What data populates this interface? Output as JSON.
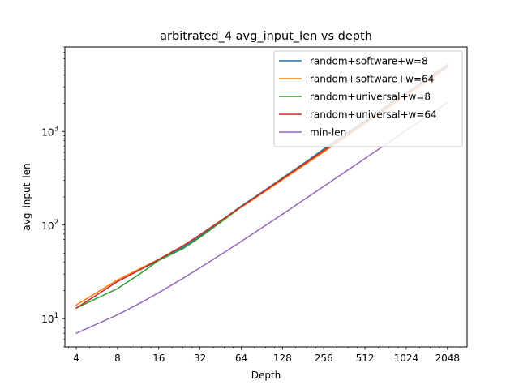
{
  "chart_data": {
    "type": "line",
    "title": "arbitrated_4 avg_input_len vs depth",
    "xlabel": "Depth",
    "ylabel": "avg_input_len",
    "xscale": "log2",
    "yscale": "log10",
    "xlim": [
      3.3,
      2850
    ],
    "ylim": [
      5,
      8000
    ],
    "xticks": [
      4,
      8,
      16,
      32,
      64,
      128,
      256,
      512,
      1024,
      2048
    ],
    "xtick_labels": [
      "4",
      "8",
      "16",
      "32",
      "64",
      "128",
      "256",
      "512",
      "1024",
      "2048"
    ],
    "yticks": [
      10,
      100,
      1000
    ],
    "ytick_labels": [
      "10",
      "10",
      "10"
    ],
    "ytick_exponents": [
      "1",
      "2",
      "3"
    ],
    "legend_position": "upper-right",
    "grid": false,
    "x": [
      4,
      8,
      12,
      16,
      24,
      32,
      48,
      64,
      96,
      128,
      192,
      256,
      384,
      512,
      768,
      1024,
      1536,
      2048
    ],
    "series": [
      {
        "name": "random+software+w=8",
        "color": "#1f77b4",
        "values": [
          13,
          25,
          34,
          42,
          58,
          76,
          118,
          160,
          238,
          320,
          480,
          650,
          980,
          1300,
          1950,
          2600,
          3900,
          5200
        ]
      },
      {
        "name": "random+software+w=64",
        "color": "#ff7f0e",
        "values": [
          14,
          26,
          35,
          43,
          60,
          79,
          118,
          155,
          230,
          305,
          455,
          605,
          905,
          1205,
          1805,
          2405,
          3605,
          4805
        ]
      },
      {
        "name": "random+universal+w=8",
        "color": "#2ca02c",
        "values": [
          13,
          21,
          31,
          42,
          56,
          74,
          114,
          157,
          235,
          315,
          470,
          630,
          945,
          1260,
          1890,
          2520,
          3780,
          5040
        ]
      },
      {
        "name": "random+universal+w=64",
        "color": "#d62728",
        "values": [
          13,
          25,
          34,
          43,
          60,
          79,
          118,
          157,
          235,
          313,
          469,
          625,
          937,
          1250,
          1875,
          2500,
          3750,
          5000
        ]
      },
      {
        "name": "min-len",
        "color": "#9467bd",
        "values": [
          7,
          11,
          15,
          19,
          27,
          35,
          51,
          67,
          99,
          131,
          195,
          259,
          387,
          515,
          771,
          1027,
          1539,
          2051
        ]
      }
    ]
  }
}
